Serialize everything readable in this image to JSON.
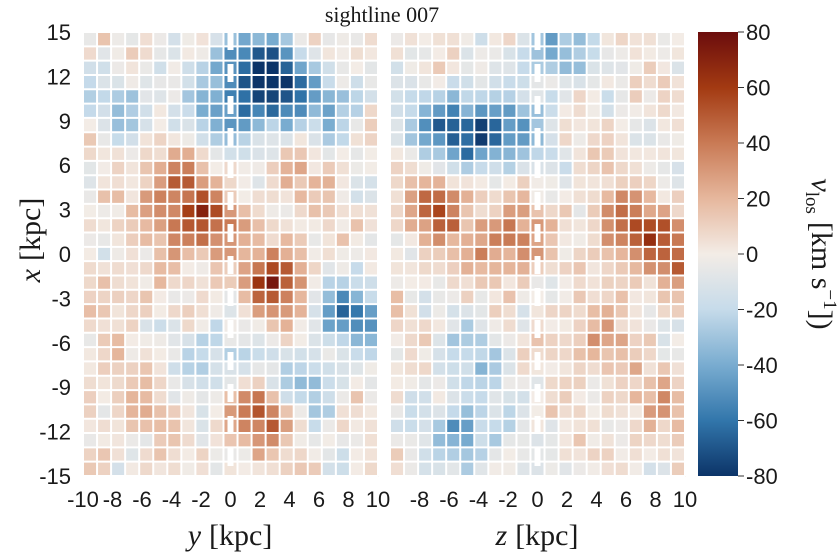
{
  "chart_data": [
    {
      "type": "heatmap",
      "title": "sightline 007",
      "panel": "left",
      "xlabel_var": "y",
      "xlabel_unit": "[kpc]",
      "ylabel_var": "x",
      "ylabel_unit": "[kpc]",
      "xlim": [
        -10,
        10
      ],
      "ylim": [
        -15,
        15
      ],
      "xticks": [
        "-10",
        "-8",
        "-6",
        "-4",
        "-2",
        "0",
        "2",
        "4",
        "6",
        "8",
        "10"
      ],
      "yticks": [
        "15",
        "12",
        "9",
        "6",
        "3",
        "0",
        "-3",
        "-6",
        "-9",
        "-12",
        "-15"
      ],
      "grid": true,
      "features": [
        {
          "x": 3,
          "y": 11,
          "value": -75
        },
        {
          "x": 1,
          "y": 13,
          "value": -55
        },
        {
          "x": -1,
          "y": 9,
          "value": -35
        },
        {
          "x": 7,
          "y": 10,
          "value": -30
        },
        {
          "x": -7,
          "y": 10,
          "value": -25
        },
        {
          "x": -2,
          "y": 2,
          "value": 55
        },
        {
          "x": -4,
          "y": 5,
          "value": 40
        },
        {
          "x": 3,
          "y": -2,
          "value": 60
        },
        {
          "x": 8,
          "y": -4,
          "value": -55
        },
        {
          "x": -1,
          "y": -7,
          "value": -30
        },
        {
          "x": 2,
          "y": -11,
          "value": 50
        },
        {
          "x": 5,
          "y": -9,
          "value": -35
        },
        {
          "x": -7,
          "y": -10,
          "value": 20
        },
        {
          "x": 5,
          "y": 5,
          "value": 15
        },
        {
          "x": -8,
          "y": -3,
          "value": 12
        }
      ]
    },
    {
      "type": "heatmap",
      "panel": "right",
      "xlabel_var": "z",
      "xlabel_unit": "[kpc]",
      "xlim": [
        -10,
        10
      ],
      "ylim": [
        -15,
        15
      ],
      "xticks": [
        "-8",
        "-6",
        "-4",
        "-2",
        "0",
        "2",
        "4",
        "6",
        "8",
        "10"
      ],
      "grid": true,
      "features": [
        {
          "x": -4,
          "y": 8,
          "value": -60
        },
        {
          "x": -7,
          "y": 9,
          "value": -40
        },
        {
          "x": 1,
          "y": 14,
          "value": -40
        },
        {
          "x": -1,
          "y": 8,
          "value": -30
        },
        {
          "x": -7,
          "y": 3,
          "value": 45
        },
        {
          "x": -2,
          "y": 1,
          "value": 45
        },
        {
          "x": 6,
          "y": 2,
          "value": 40
        },
        {
          "x": 9,
          "y": 0,
          "value": 45
        },
        {
          "x": -4,
          "y": -7,
          "value": -25
        },
        {
          "x": -5,
          "y": -12,
          "value": -45
        },
        {
          "x": 4,
          "y": -6,
          "value": 25
        },
        {
          "x": 8,
          "y": -10,
          "value": 20
        },
        {
          "x": 4,
          "y": 7,
          "value": 10
        }
      ]
    }
  ],
  "colorbar": {
    "label_var": "v",
    "label_sub": "los",
    "label_unit": "[km s",
    "label_exp": "−1",
    "label_close": "])",
    "range": [
      -80,
      80
    ],
    "ticks": [
      "80",
      "60",
      "40",
      "20",
      "0",
      "-20",
      "-40",
      "-60",
      "-80"
    ],
    "colors": [
      "#6b0d0d",
      "#a33a12",
      "#c97a55",
      "#e6b79d",
      "#f3ece6",
      "#c6dbea",
      "#79acd0",
      "#3276ab",
      "#0c3468"
    ]
  }
}
